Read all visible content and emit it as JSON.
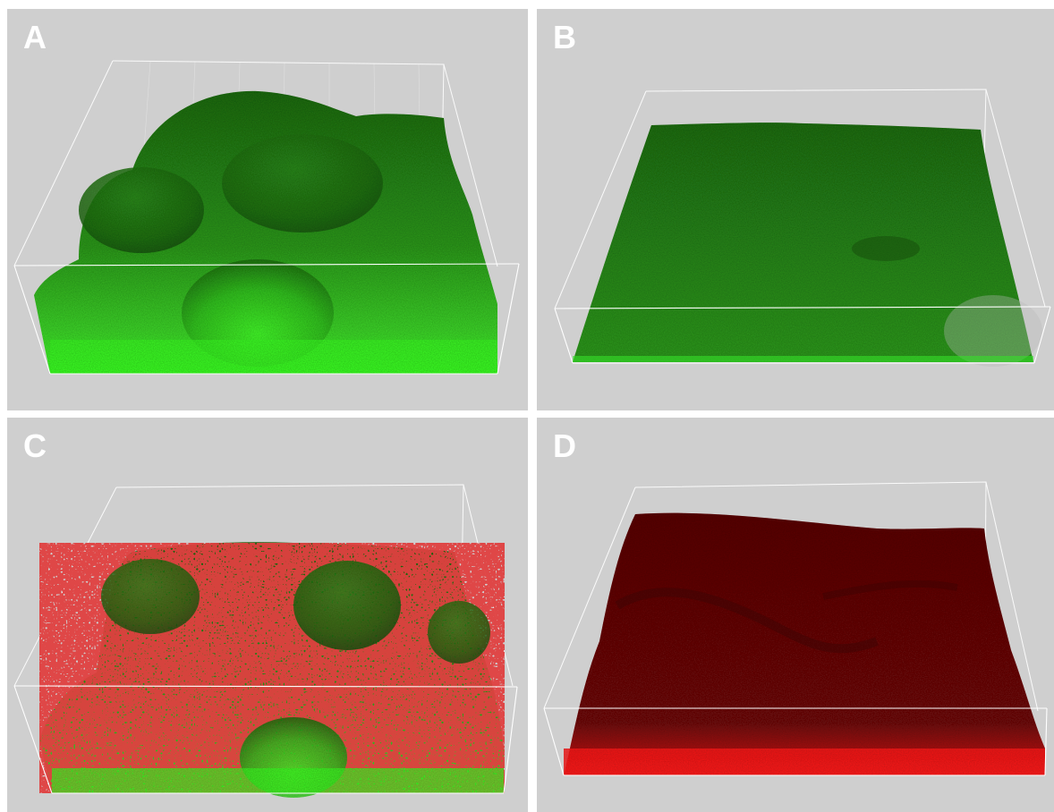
{
  "panels": [
    {
      "letter": "A",
      "subject": "green-biofilm-mounds"
    },
    {
      "letter": "B",
      "subject": "green-biofilm-flat"
    },
    {
      "letter": "C",
      "subject": "green-red-biofilm-mounds"
    },
    {
      "letter": "D",
      "subject": "red-biofilm-surface"
    }
  ],
  "colors": {
    "background": "#cfcfcf",
    "box_lines": "#ffffff",
    "green_bright": "#33ff22",
    "green_mid": "#2f9a1c",
    "green_dark": "#16560c",
    "red_bright": "#ff1a1a",
    "red_mid": "#8a0c0c",
    "red_dark": "#4a0505"
  }
}
